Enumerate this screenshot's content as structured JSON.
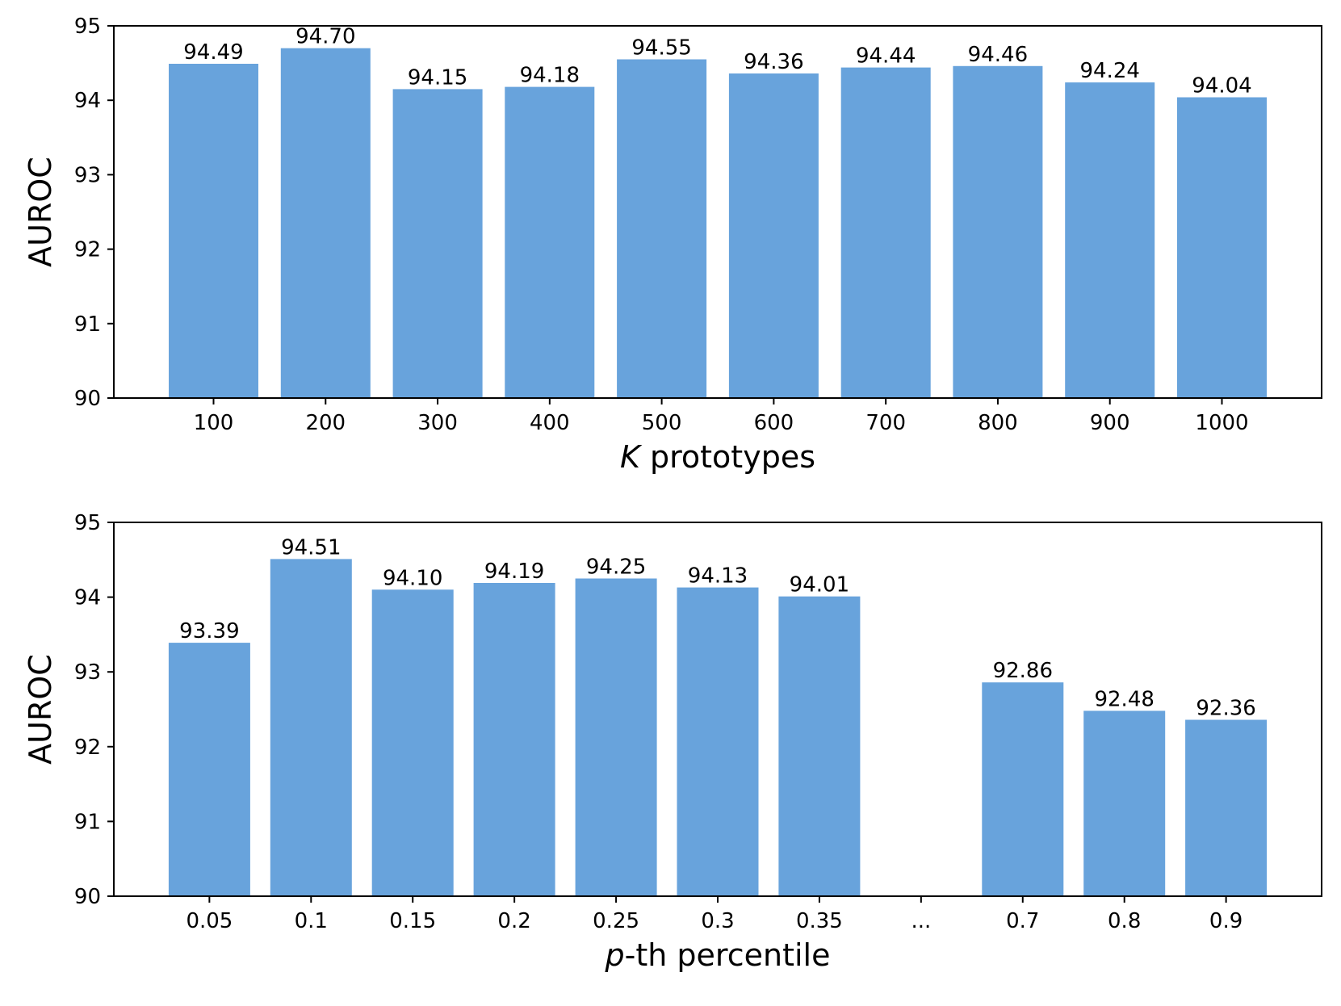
{
  "chart_data": [
    {
      "type": "bar",
      "categories": [
        "100",
        "200",
        "300",
        "400",
        "500",
        "600",
        "700",
        "800",
        "900",
        "1000"
      ],
      "values": [
        94.49,
        94.7,
        94.15,
        94.18,
        94.55,
        94.36,
        94.44,
        94.46,
        94.24,
        94.04
      ],
      "value_labels": [
        "94.49",
        "94.70",
        "94.15",
        "94.18",
        "94.55",
        "94.36",
        "94.44",
        "94.46",
        "94.24",
        "94.04"
      ],
      "xlabel_italic": "K",
      "xlabel_rest": " prototypes",
      "ylabel": "AUROC",
      "ylim": [
        90,
        95
      ],
      "yticks": [
        90,
        91,
        92,
        93,
        94,
        95
      ],
      "grid": false,
      "bar_color": "#68a3dc"
    },
    {
      "type": "bar",
      "categories": [
        "0.05",
        "0.1",
        "0.15",
        "0.2",
        "0.25",
        "0.3",
        "0.35",
        "...",
        "0.7",
        "0.8",
        "0.9"
      ],
      "values": [
        93.39,
        94.51,
        94.1,
        94.19,
        94.25,
        94.13,
        94.01,
        null,
        92.86,
        92.48,
        92.36
      ],
      "value_labels": [
        "93.39",
        "94.51",
        "94.10",
        "94.19",
        "94.25",
        "94.13",
        "94.01",
        "",
        "92.86",
        "92.48",
        "92.36"
      ],
      "xlabel_italic": "p",
      "xlabel_rest": "-th percentile",
      "ylabel": "AUROC",
      "ylim": [
        90,
        95
      ],
      "yticks": [
        90,
        91,
        92,
        93,
        94,
        95
      ],
      "grid": false,
      "bar_color": "#68a3dc"
    }
  ]
}
